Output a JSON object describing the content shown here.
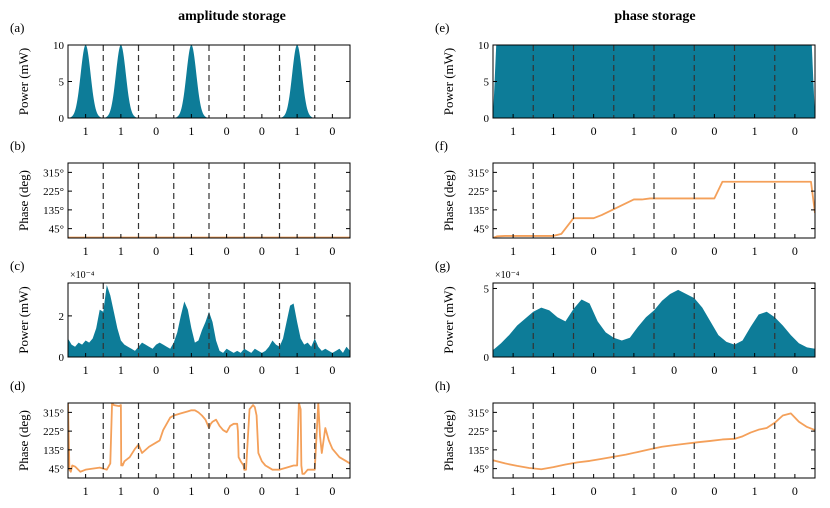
{
  "figure": {
    "col_titles": [
      "amplitude storage",
      "phase storage"
    ]
  },
  "colors": {
    "area": "#0d7c98",
    "line": "#f4a05a",
    "divider": "#333333"
  },
  "chart_data": [
    {
      "id": "a",
      "panel_label": "(a)",
      "type": "area",
      "ylabel": "Power (mW)",
      "yticks": [
        0,
        5,
        10
      ],
      "ytick_labels": [
        "0",
        "5",
        "10"
      ],
      "ylim": [
        0,
        10
      ],
      "categories": [
        "1",
        "1",
        "0",
        "1",
        "0",
        "0",
        "1",
        "0"
      ],
      "xlim": [
        0,
        8
      ],
      "series": [
        {
          "pulse_slots": [
            0,
            1,
            3,
            6
          ],
          "peak": 10,
          "color": "area"
        }
      ]
    },
    {
      "id": "b",
      "panel_label": "(b)",
      "type": "line",
      "ylabel": "Phase (deg)",
      "yticks": [
        45,
        135,
        225,
        315
      ],
      "ytick_labels": [
        "45°",
        "135°",
        "225°",
        "315°"
      ],
      "ylim": [
        0,
        360
      ],
      "categories": [
        "1",
        "1",
        "0",
        "1",
        "0",
        "0",
        "1",
        "0"
      ],
      "xlim": [
        0,
        8
      ],
      "series": [
        {
          "x": [
            0,
            8
          ],
          "y": [
            2,
            2
          ],
          "color": "line"
        }
      ]
    },
    {
      "id": "c",
      "panel_label": "(c)",
      "type": "area",
      "ylabel": "Power (mW)",
      "multiplier": "×10⁻⁴",
      "yticks": [
        0,
        2
      ],
      "ytick_labels": [
        "0",
        "2"
      ],
      "ylim": [
        0,
        3.6
      ],
      "categories": [
        "1",
        "1",
        "0",
        "1",
        "0",
        "0",
        "1",
        "0"
      ],
      "xlim": [
        0,
        8
      ],
      "series": [
        {
          "x": [
            0,
            0.1,
            0.2,
            0.3,
            0.4,
            0.5,
            0.6,
            0.7,
            0.8,
            0.9,
            1.0,
            1.1,
            1.2,
            1.3,
            1.4,
            1.5,
            1.6,
            1.7,
            1.8,
            1.9,
            2.0,
            2.1,
            2.2,
            2.3,
            2.4,
            2.5,
            2.6,
            2.7,
            2.8,
            2.9,
            3.0,
            3.1,
            3.2,
            3.3,
            3.4,
            3.5,
            3.6,
            3.7,
            3.8,
            3.9,
            4.0,
            4.1,
            4.2,
            4.3,
            4.4,
            4.5,
            4.6,
            4.7,
            4.8,
            4.9,
            5.0,
            5.1,
            5.2,
            5.3,
            5.4,
            5.5,
            5.6,
            5.7,
            5.8,
            5.9,
            6.0,
            6.1,
            6.2,
            6.3,
            6.4,
            6.5,
            6.6,
            6.7,
            6.8,
            6.9,
            7.0,
            7.1,
            7.2,
            7.3,
            7.4,
            7.5,
            7.6,
            7.7,
            7.8,
            7.9,
            8.0
          ],
          "y": [
            0.9,
            0.6,
            0.5,
            0.7,
            0.6,
            0.8,
            0.7,
            0.9,
            1.4,
            2.3,
            2.2,
            3.5,
            3.0,
            2.2,
            1.4,
            0.8,
            0.6,
            0.5,
            0.4,
            0.3,
            0.5,
            0.7,
            0.6,
            0.5,
            0.4,
            0.6,
            0.7,
            0.6,
            0.5,
            0.4,
            0.7,
            1.2,
            2.0,
            2.7,
            2.3,
            1.4,
            0.7,
            0.8,
            1.3,
            1.7,
            2.2,
            1.7,
            0.8,
            0.3,
            0.2,
            0.4,
            0.3,
            0.2,
            0.3,
            0.2,
            0.4,
            0.3,
            0.2,
            0.4,
            0.3,
            0.2,
            0.3,
            0.5,
            0.8,
            0.6,
            0.5,
            0.9,
            1.7,
            2.5,
            2.6,
            1.7,
            0.9,
            0.6,
            0.7,
            0.5,
            0.9,
            0.5,
            0.3,
            0.4,
            0.3,
            0.2,
            0.3,
            0.4,
            0.2,
            0.5,
            0.3
          ],
          "color": "area"
        }
      ]
    },
    {
      "id": "d",
      "panel_label": "(d)",
      "type": "line",
      "ylabel": "Phase (deg)",
      "yticks": [
        45,
        135,
        225,
        315
      ],
      "ytick_labels": [
        "45°",
        "135°",
        "225°",
        "315°"
      ],
      "ylim": [
        0,
        360
      ],
      "categories": [
        "1",
        "1",
        "0",
        "1",
        "0",
        "0",
        "1",
        "0"
      ],
      "xlim": [
        0,
        8
      ],
      "series": [
        {
          "x": [
            0,
            0.04,
            0.08,
            0.12,
            0.2,
            0.35,
            0.5,
            0.7,
            0.9,
            1.1,
            1.2,
            1.25,
            1.3,
            1.45,
            1.5,
            1.51,
            1.52,
            1.55,
            1.6,
            1.75,
            1.9,
            2.0,
            2.1,
            2.3,
            2.5,
            2.6,
            2.7,
            2.8,
            2.9,
            3.0,
            3.2,
            3.4,
            3.5,
            3.6,
            3.7,
            3.8,
            3.9,
            4.0,
            4.05,
            4.1,
            4.2,
            4.3,
            4.4,
            4.5,
            4.52,
            4.55,
            4.6,
            4.7,
            4.8,
            4.82,
            4.84,
            4.9,
            4.98,
            5.0,
            5.05,
            5.15,
            5.25,
            5.3,
            5.35,
            5.4,
            5.5,
            5.6,
            5.7,
            5.8,
            5.9,
            6.0,
            6.2,
            6.4,
            6.5,
            6.55,
            6.6,
            6.62,
            6.65,
            6.7,
            6.8,
            7.0,
            7.1,
            7.15,
            7.2,
            7.3,
            7.4,
            7.5,
            7.7,
            7.9,
            8.0
          ],
          "y": [
            360,
            40,
            30,
            60,
            55,
            30,
            40,
            45,
            50,
            40,
            70,
            360,
            350,
            345,
            350,
            60,
            70,
            60,
            80,
            100,
            140,
            160,
            120,
            150,
            170,
            180,
            230,
            260,
            290,
            300,
            310,
            320,
            325,
            325,
            315,
            300,
            280,
            240,
            260,
            270,
            280,
            250,
            230,
            220,
            225,
            235,
            250,
            260,
            260,
            225,
            100,
            80,
            60,
            40,
            40,
            330,
            350,
            340,
            300,
            120,
            80,
            60,
            50,
            40,
            40,
            40,
            50,
            60,
            60,
            360,
            330,
            60,
            20,
            20,
            40,
            40,
            360,
            200,
            120,
            240,
            180,
            140,
            100,
            80,
            70
          ],
          "color": "line"
        }
      ]
    },
    {
      "id": "e",
      "panel_label": "(e)",
      "type": "area",
      "ylabel": "Power (mW)",
      "yticks": [
        0,
        5,
        10
      ],
      "ytick_labels": [
        "0",
        "5",
        "10"
      ],
      "ylim": [
        0,
        10
      ],
      "categories": [
        "1",
        "1",
        "0",
        "1",
        "0",
        "0",
        "1",
        "0"
      ],
      "xlim": [
        0,
        8
      ],
      "series": [
        {
          "x": [
            0,
            0.08,
            7.92,
            8.0
          ],
          "y": [
            0,
            10,
            10,
            0
          ],
          "color": "area"
        }
      ]
    },
    {
      "id": "f",
      "panel_label": "(f)",
      "type": "line",
      "ylabel": "Phase (deg)",
      "yticks": [
        45,
        135,
        225,
        315
      ],
      "ytick_labels": [
        "45°",
        "135°",
        "225°",
        "315°"
      ],
      "ylim": [
        0,
        360
      ],
      "categories": [
        "1",
        "1",
        "0",
        "1",
        "0",
        "0",
        "1",
        "0"
      ],
      "xlim": [
        0,
        8
      ],
      "series": [
        {
          "x": [
            0,
            0.1,
            0.3,
            1.5,
            1.7,
            2.0,
            2.3,
            2.5,
            2.7,
            3.5,
            3.7,
            3.9,
            4.5,
            5.5,
            5.7,
            5.9,
            7.5,
            7.9,
            8.0
          ],
          "y": [
            0,
            8,
            10,
            10,
            20,
            95,
            95,
            95,
            110,
            185,
            185,
            190,
            190,
            190,
            270,
            270,
            270,
            270,
            120
          ],
          "color": "line"
        }
      ]
    },
    {
      "id": "g",
      "panel_label": "(g)",
      "type": "area",
      "ylabel": "Power (mW)",
      "multiplier": "×10⁻⁴",
      "yticks": [
        0,
        5
      ],
      "ytick_labels": [
        "0",
        "5"
      ],
      "ylim": [
        0,
        5.4
      ],
      "categories": [
        "1",
        "1",
        "0",
        "1",
        "0",
        "0",
        "1",
        "0"
      ],
      "xlim": [
        0,
        8
      ],
      "series": [
        {
          "x": [
            0,
            0.2,
            0.4,
            0.6,
            0.8,
            1.0,
            1.2,
            1.4,
            1.6,
            1.8,
            2.0,
            2.2,
            2.4,
            2.6,
            2.8,
            3.0,
            3.2,
            3.4,
            3.6,
            3.8,
            4.0,
            4.2,
            4.4,
            4.6,
            4.8,
            5.0,
            5.2,
            5.4,
            5.6,
            5.8,
            6.0,
            6.2,
            6.4,
            6.6,
            6.8,
            7.0,
            7.2,
            7.4,
            7.6,
            7.8,
            8.0
          ],
          "y": [
            0.5,
            1.0,
            1.6,
            2.3,
            2.8,
            3.3,
            3.6,
            3.4,
            2.9,
            2.6,
            3.5,
            4.2,
            3.9,
            2.6,
            1.8,
            1.4,
            1.2,
            1.4,
            2.2,
            2.9,
            3.4,
            4.1,
            4.6,
            4.9,
            4.6,
            4.3,
            3.6,
            2.6,
            1.6,
            1.1,
            0.9,
            1.2,
            2.2,
            3.1,
            3.3,
            2.9,
            2.3,
            1.6,
            1.0,
            0.7,
            0.6
          ],
          "color": "area"
        }
      ]
    },
    {
      "id": "h",
      "panel_label": "(h)",
      "type": "line",
      "ylabel": "Phase (deg)",
      "yticks": [
        45,
        135,
        225,
        315
      ],
      "ytick_labels": [
        "45°",
        "135°",
        "225°",
        "315°"
      ],
      "ylim": [
        0,
        360
      ],
      "categories": [
        "1",
        "1",
        "0",
        "1",
        "0",
        "0",
        "1",
        "0"
      ],
      "xlim": [
        0,
        8
      ],
      "series": [
        {
          "x": [
            0,
            0.3,
            0.6,
            0.9,
            1.2,
            1.5,
            1.8,
            2.1,
            2.4,
            2.7,
            3.0,
            3.3,
            3.6,
            3.9,
            4.2,
            4.5,
            4.8,
            5.1,
            5.4,
            5.7,
            6.0,
            6.2,
            6.4,
            6.6,
            6.8,
            7.0,
            7.2,
            7.4,
            7.6,
            7.8,
            8.0
          ],
          "y": [
            85,
            70,
            58,
            48,
            42,
            52,
            65,
            75,
            82,
            92,
            102,
            112,
            125,
            138,
            150,
            158,
            165,
            172,
            178,
            185,
            188,
            200,
            218,
            232,
            240,
            265,
            300,
            310,
            270,
            245,
            230
          ],
          "color": "line"
        }
      ]
    }
  ]
}
